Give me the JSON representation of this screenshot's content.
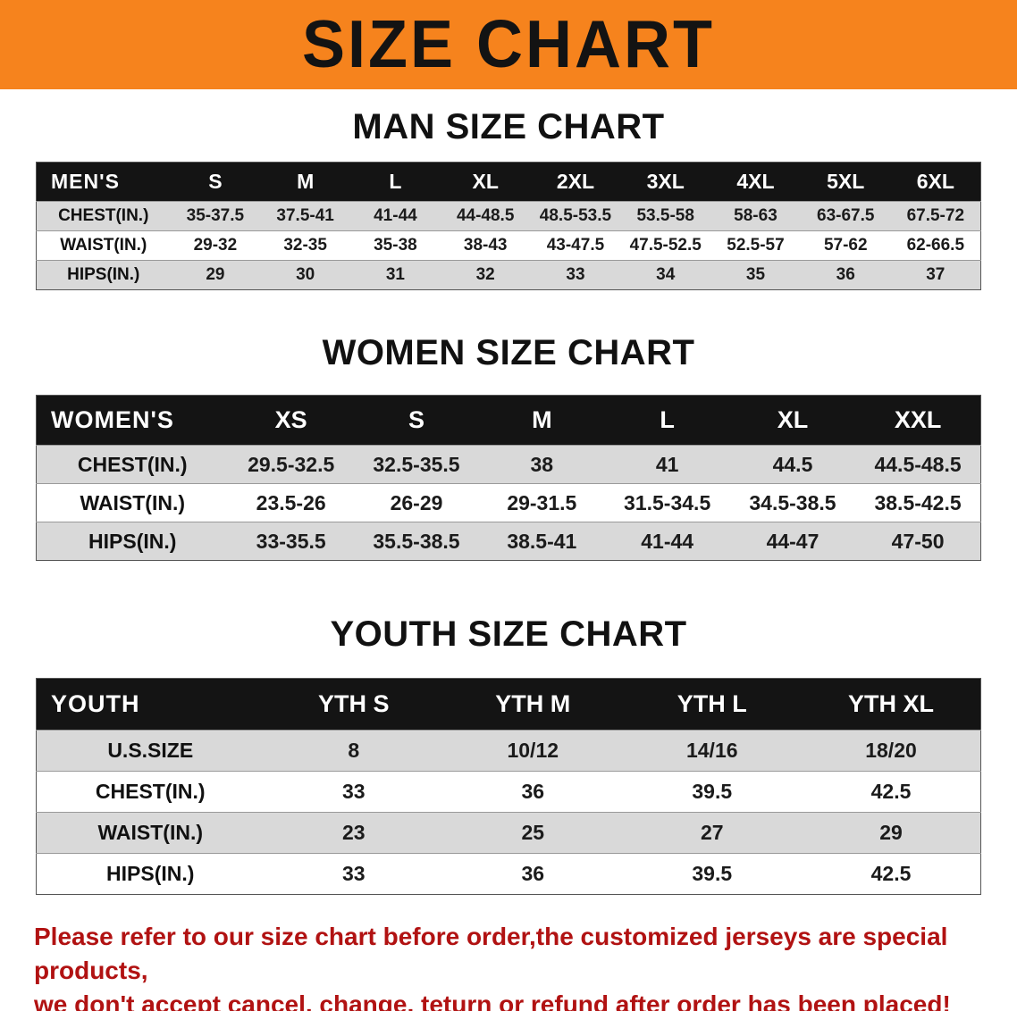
{
  "banner": {
    "title": "SIZE CHART",
    "bg_color": "#f6831d"
  },
  "sections": [
    {
      "id": "men",
      "heading": "MAN SIZE CHART",
      "corner_label": "MEN'S",
      "sizes": [
        "S",
        "M",
        "L",
        "XL",
        "2XL",
        "3XL",
        "4XL",
        "5XL",
        "6XL"
      ],
      "rows": [
        {
          "label": "CHEST(IN.)",
          "values": [
            "35-37.5",
            "37.5-41",
            "41-44",
            "44-48.5",
            "48.5-53.5",
            "53.5-58",
            "58-63",
            "63-67.5",
            "67.5-72"
          ]
        },
        {
          "label": "WAIST(IN.)",
          "values": [
            "29-32",
            "32-35",
            "35-38",
            "38-43",
            "43-47.5",
            "47.5-52.5",
            "52.5-57",
            "57-62",
            "62-66.5"
          ]
        },
        {
          "label": "HIPS(IN.)",
          "values": [
            "29",
            "30",
            "31",
            "32",
            "33",
            "34",
            "35",
            "36",
            "37"
          ]
        }
      ]
    },
    {
      "id": "women",
      "heading": "WOMEN SIZE CHART",
      "corner_label": "WOMEN'S",
      "sizes": [
        "XS",
        "S",
        "M",
        "L",
        "XL",
        "XXL"
      ],
      "rows": [
        {
          "label": "CHEST(IN.)",
          "values": [
            "29.5-32.5",
            "32.5-35.5",
            "38",
            "41",
            "44.5",
            "44.5-48.5"
          ]
        },
        {
          "label": "WAIST(IN.)",
          "values": [
            "23.5-26",
            "26-29",
            "29-31.5",
            "31.5-34.5",
            "34.5-38.5",
            "38.5-42.5"
          ]
        },
        {
          "label": "HIPS(IN.)",
          "values": [
            "33-35.5",
            "35.5-38.5",
            "38.5-41",
            "41-44",
            "44-47",
            "47-50"
          ]
        }
      ]
    },
    {
      "id": "youth",
      "heading": "YOUTH SIZE CHART",
      "corner_label": "YOUTH",
      "sizes": [
        "YTH S",
        "YTH M",
        "YTH L",
        "YTH XL"
      ],
      "rows": [
        {
          "label": "U.S.SIZE",
          "values": [
            "8",
            "10/12",
            "14/16",
            "18/20"
          ]
        },
        {
          "label": "CHEST(IN.)",
          "values": [
            "33",
            "36",
            "39.5",
            "42.5"
          ]
        },
        {
          "label": "WAIST(IN.)",
          "values": [
            "23",
            "25",
            "27",
            "29"
          ]
        },
        {
          "label": "HIPS(IN.)",
          "values": [
            "33",
            "36",
            "39.5",
            "42.5"
          ]
        }
      ]
    }
  ],
  "disclaimer": {
    "line1": "Please refer to our size chart before order,the customized jerseys are special products,",
    "line2": "we don't accept cancel, change, teturn or refund after order has been placed!",
    "color": "#b11212"
  }
}
